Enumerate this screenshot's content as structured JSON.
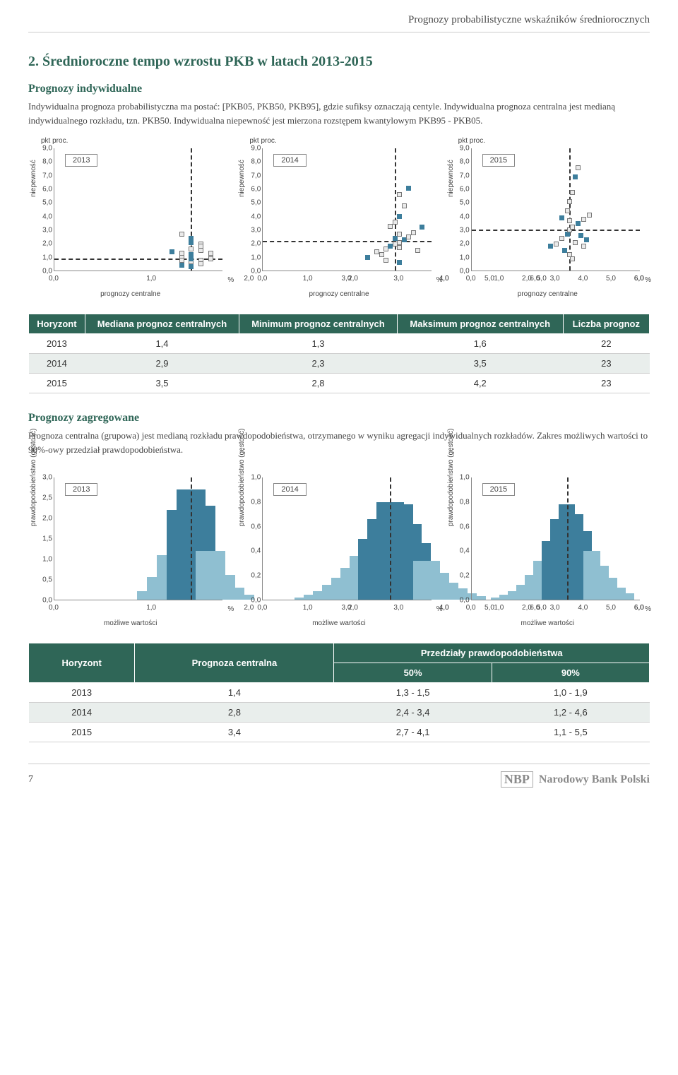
{
  "header": {
    "running_title": "Prognozy probabilistyczne wskaźników średniorocznych"
  },
  "section_title": "2. Średnioroczne tempo wzrostu PKB w latach 2013-2015",
  "individual": {
    "heading": "Prognozy indywidualne",
    "paragraph": "Indywidualna prognoza probabilistyczna ma postać: [PKB05, PKB50, PKB95], gdzie sufiksy oznaczają centyle. Indywidualna prognoza centralna jest medianą indywidualnego rozkładu, tzn. PKB50. Indywidualna niepewność jest mierzona rozstępem kwantylowym PKB95 - PKB05.",
    "y_label": "niepewność",
    "x_label": "prognozy centralne",
    "corner_label": "pkt proc.",
    "pct_label": "%",
    "y_ticks": [
      "0,0",
      "1,0",
      "2,0",
      "3,0",
      "4,0",
      "5,0",
      "6,0",
      "7,0",
      "8,0",
      "9,0"
    ],
    "x_ticks": [
      "0,0",
      "1,0",
      "2,0",
      "3,0",
      "4,0",
      "5,0",
      "6,0"
    ],
    "ylim": [
      0,
      9
    ],
    "xlim": [
      0,
      6
    ],
    "panels": [
      {
        "year": "2013",
        "median_x": 1.4,
        "median_y": 0.9,
        "points": [
          [
            1.3,
            0.6
          ],
          [
            1.4,
            0.7
          ],
          [
            1.5,
            0.8
          ],
          [
            1.4,
            0.9
          ],
          [
            1.3,
            1.0
          ],
          [
            1.6,
            1.1
          ],
          [
            1.4,
            1.2
          ],
          [
            1.5,
            0.5
          ],
          [
            1.3,
            1.3
          ],
          [
            1.2,
            1.4
          ],
          [
            1.5,
            1.5
          ],
          [
            1.4,
            1.6
          ],
          [
            1.3,
            0.4
          ],
          [
            1.6,
            0.9
          ],
          [
            1.5,
            2.0
          ],
          [
            1.4,
            2.4
          ],
          [
            1.3,
            2.7
          ],
          [
            1.5,
            1.8
          ],
          [
            1.4,
            0.3
          ],
          [
            1.6,
            1.3
          ],
          [
            1.3,
            0.8
          ],
          [
            1.4,
            2.1
          ]
        ]
      },
      {
        "year": "2014",
        "median_x": 2.9,
        "median_y": 2.2,
        "points": [
          [
            2.3,
            1.0
          ],
          [
            2.5,
            1.4
          ],
          [
            2.7,
            1.6
          ],
          [
            2.8,
            1.8
          ],
          [
            2.9,
            2.0
          ],
          [
            3.0,
            2.1
          ],
          [
            3.1,
            2.3
          ],
          [
            3.2,
            2.5
          ],
          [
            3.3,
            2.8
          ],
          [
            3.5,
            3.2
          ],
          [
            2.6,
            1.2
          ],
          [
            3.0,
            1.7
          ],
          [
            2.9,
            2.4
          ],
          [
            3.0,
            2.7
          ],
          [
            2.8,
            3.3
          ],
          [
            3.0,
            4.0
          ],
          [
            3.1,
            4.8
          ],
          [
            3.0,
            5.6
          ],
          [
            3.2,
            6.1
          ],
          [
            2.7,
            0.8
          ],
          [
            3.4,
            1.5
          ],
          [
            3.0,
            0.6
          ],
          [
            2.9,
            3.6
          ]
        ]
      },
      {
        "year": "2015",
        "median_x": 3.5,
        "median_y": 3.0,
        "points": [
          [
            2.8,
            1.8
          ],
          [
            3.0,
            2.0
          ],
          [
            3.2,
            2.4
          ],
          [
            3.4,
            2.7
          ],
          [
            3.5,
            3.0
          ],
          [
            3.6,
            3.2
          ],
          [
            3.8,
            3.5
          ],
          [
            4.0,
            3.8
          ],
          [
            4.2,
            4.1
          ],
          [
            3.3,
            1.5
          ],
          [
            3.5,
            1.2
          ],
          [
            3.7,
            2.1
          ],
          [
            3.9,
            2.6
          ],
          [
            3.5,
            5.1
          ],
          [
            3.6,
            5.8
          ],
          [
            3.7,
            6.9
          ],
          [
            3.8,
            7.6
          ],
          [
            3.4,
            4.4
          ],
          [
            3.2,
            3.9
          ],
          [
            3.6,
            0.9
          ],
          [
            4.0,
            1.8
          ],
          [
            4.1,
            2.3
          ],
          [
            3.5,
            3.7
          ]
        ]
      }
    ],
    "colors": {
      "marker_border": "#777777",
      "marker_fill_light": "#eaeaea",
      "marker_fill_dark": "#3d7e9c",
      "dash_line": "#333333"
    }
  },
  "table1": {
    "headers": [
      "Horyzont",
      "Mediana prognoz centralnych",
      "Minimum prognoz centralnych",
      "Maksimum prognoz centralnych",
      "Liczba prognoz"
    ],
    "rows": [
      [
        "2013",
        "1,4",
        "1,3",
        "1,6",
        "22"
      ],
      [
        "2014",
        "2,9",
        "2,3",
        "3,5",
        "23"
      ],
      [
        "2015",
        "3,5",
        "2,8",
        "4,2",
        "23"
      ]
    ]
  },
  "aggregated": {
    "heading": "Prognozy zagregowane",
    "paragraph": "Prognoza centralna (grupowa) jest medianą rozkładu prawdopodobieństwa, otrzymanego w wyniku agregacji indywidualnych rozkładów. Zakres możliwych wartości to 90%-owy przedział prawdopodobieństwa.",
    "y_label": "prawdopodobieństwo (gęstość)",
    "x_label": "możliwe wartości",
    "pct_label": "%",
    "x_ticks": [
      "0,0",
      "1,0",
      "2,0",
      "3,0",
      "4,0",
      "5,0",
      "6,0"
    ],
    "xlim": [
      0,
      6
    ],
    "panels": [
      {
        "year": "2013",
        "ylim": [
          0,
          3.0
        ],
        "y_ticks": [
          "0,0",
          "0,5",
          "1,0",
          "1,5",
          "2,0",
          "2,5",
          "3,0"
        ],
        "median_x": 1.4,
        "ci50": [
          1.3,
          1.5
        ],
        "hist": [
          [
            1.0,
            0.2
          ],
          [
            1.1,
            0.55
          ],
          [
            1.2,
            1.1
          ],
          [
            1.3,
            2.2
          ],
          [
            1.4,
            2.7
          ],
          [
            1.5,
            2.3
          ],
          [
            1.6,
            1.2
          ],
          [
            1.7,
            0.6
          ],
          [
            1.8,
            0.3
          ],
          [
            1.9,
            0.12
          ]
        ]
      },
      {
        "year": "2014",
        "ylim": [
          0,
          1.0
        ],
        "y_ticks": [
          "0,0",
          "0,2",
          "0,4",
          "0,6",
          "0,8",
          "1,0"
        ],
        "median_x": 2.8,
        "ci50": [
          2.4,
          3.4
        ],
        "hist": [
          [
            1.0,
            0.02
          ],
          [
            1.2,
            0.04
          ],
          [
            1.4,
            0.07
          ],
          [
            1.6,
            0.12
          ],
          [
            1.8,
            0.18
          ],
          [
            2.0,
            0.26
          ],
          [
            2.2,
            0.36
          ],
          [
            2.4,
            0.5
          ],
          [
            2.6,
            0.66
          ],
          [
            2.8,
            0.8
          ],
          [
            3.0,
            0.78
          ],
          [
            3.2,
            0.62
          ],
          [
            3.4,
            0.46
          ],
          [
            3.6,
            0.32
          ],
          [
            3.8,
            0.22
          ],
          [
            4.0,
            0.14
          ],
          [
            4.2,
            0.09
          ],
          [
            4.4,
            0.05
          ],
          [
            4.6,
            0.03
          ]
        ]
      },
      {
        "year": "2015",
        "ylim": [
          0,
          1.0
        ],
        "y_ticks": [
          "0,0",
          "0,2",
          "0,4",
          "0,6",
          "0,8",
          "1,0"
        ],
        "median_x": 3.4,
        "ci50": [
          2.7,
          4.1
        ],
        "hist": [
          [
            1.0,
            0.02
          ],
          [
            1.3,
            0.04
          ],
          [
            1.6,
            0.07
          ],
          [
            1.9,
            0.12
          ],
          [
            2.2,
            0.2
          ],
          [
            2.5,
            0.32
          ],
          [
            2.8,
            0.48
          ],
          [
            3.1,
            0.66
          ],
          [
            3.4,
            0.78
          ],
          [
            3.7,
            0.7
          ],
          [
            4.0,
            0.56
          ],
          [
            4.3,
            0.4
          ],
          [
            4.6,
            0.28
          ],
          [
            4.9,
            0.18
          ],
          [
            5.2,
            0.1
          ],
          [
            5.5,
            0.05
          ]
        ]
      }
    ],
    "colors": {
      "hist_light": "#8fbfd1",
      "hist_dark": "#3d7e9c"
    }
  },
  "table2": {
    "headers_row1": [
      "Horyzont",
      "Prognoza centralna",
      "Przedziały prawdopodobieństwa"
    ],
    "headers_row2": [
      "50%",
      "90%"
    ],
    "rows": [
      [
        "2013",
        "1,4",
        "1,3 - 1,5",
        "1,0 - 1,9"
      ],
      [
        "2014",
        "2,8",
        "2,4 - 3,4",
        "1,2 - 4,6"
      ],
      [
        "2015",
        "3,4",
        "2,7 - 4,1",
        "1,1 - 5,5"
      ]
    ]
  },
  "footer": {
    "page_number": "7",
    "bank_name": "Narodowy Bank Polski",
    "logo_text": "NBP"
  }
}
